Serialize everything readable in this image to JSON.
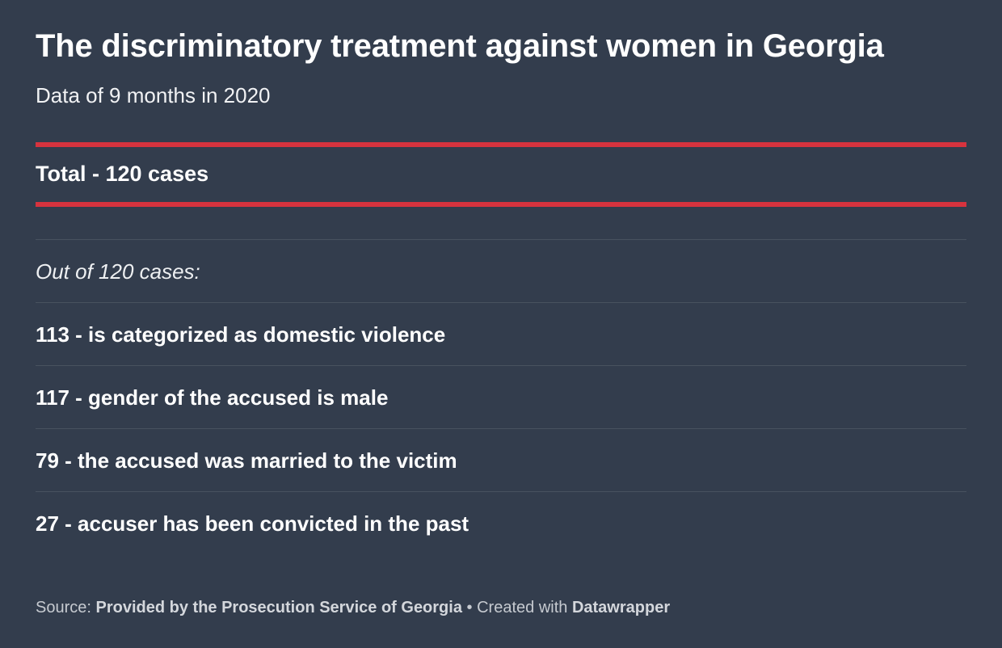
{
  "title": "The discriminatory treatment against women in Georgia",
  "subtitle": "Data of 9 months in 2020",
  "total": "Total - 120 cases",
  "intro": "Out of 120 cases:",
  "stats": [
    "113 - is categorized as domestic violence",
    "117 - gender of the accused is male",
    "79 - the accused was married to the victim",
    "27 - accuser has been convicted in the past"
  ],
  "footer": {
    "source_label": "Source:",
    "source": "Provided by the Prosecution Service of Georgia",
    "separator": "•",
    "created_label": "Created with",
    "tool": "Datawrapper"
  },
  "colors": {
    "background": "#333d4d",
    "accent_rule": "#d7333e",
    "text": "#ffffff"
  },
  "chart_data": {
    "type": "table",
    "title": "The discriminatory treatment against women in Georgia",
    "subtitle": "Data of 9 months in 2020",
    "total_cases": 120,
    "rows": [
      {
        "value": 113,
        "label": "is categorized as domestic violence"
      },
      {
        "value": 117,
        "label": "gender of the accused is male"
      },
      {
        "value": 79,
        "label": "the accused was married to the victim"
      },
      {
        "value": 27,
        "label": "accuser has been convicted in the past"
      }
    ]
  }
}
